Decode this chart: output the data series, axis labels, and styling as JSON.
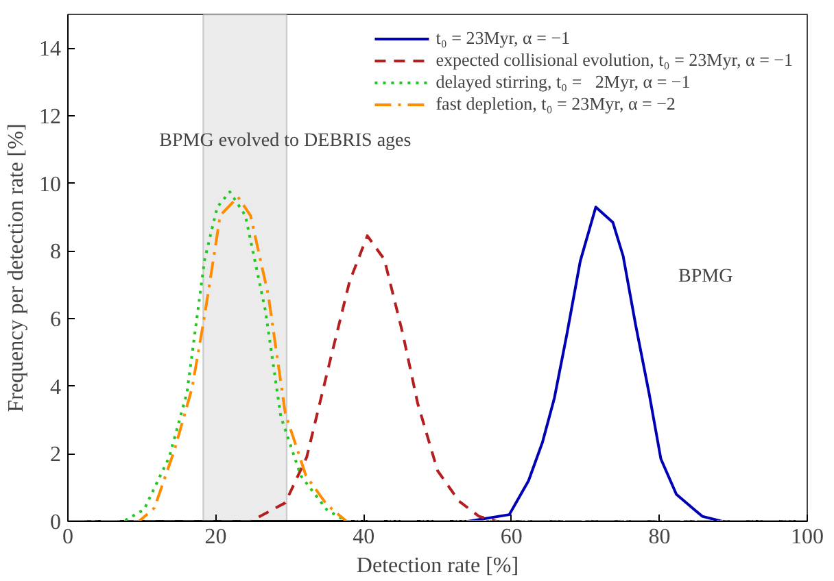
{
  "chart_data": {
    "type": "line",
    "xlabel": "Detection rate [%]",
    "ylabel": "Frequency per detection rate [%]",
    "xlim": [
      0,
      100
    ],
    "ylim": [
      0,
      15
    ],
    "xticks": [
      0,
      20,
      40,
      60,
      80,
      100
    ],
    "yticks": [
      0,
      2,
      4,
      6,
      8,
      10,
      12,
      14
    ],
    "grid": false,
    "legend": "top right",
    "series": [
      {
        "name": "t₀ = 23Myr, α = −1",
        "color": "#0000b4",
        "line_style": "solid",
        "x": [
          0,
          54.1,
          59.7,
          62.3,
          64.2,
          65.8,
          67.5,
          69.3,
          71.4,
          73.7,
          75.1,
          76.8,
          78.6,
          80.2,
          82.3,
          85.8,
          88.5,
          100
        ],
        "values": [
          0,
          0,
          0.2,
          1.2,
          2.35,
          3.65,
          5.55,
          7.7,
          9.3,
          8.85,
          7.85,
          5.8,
          3.8,
          1.85,
          0.8,
          0.15,
          0,
          0
        ]
      },
      {
        "name": "expected collisional evolution, t₀ = 23Myr, α = −1",
        "color": "#b41e1e",
        "line_style": "dashed",
        "x": [
          0,
          24.7,
          29.4,
          32.3,
          35.4,
          38.1,
          40.5,
          42.8,
          45.3,
          47.3,
          50,
          52.9,
          55.6,
          58,
          100
        ],
        "values": [
          0,
          0,
          0.55,
          1.9,
          4.7,
          7.1,
          8.45,
          7.75,
          5.55,
          3.5,
          1.5,
          0.6,
          0.15,
          0,
          0
        ]
      },
      {
        "name": "delayed stirring, t₀ =   2Myr, α = −1",
        "color": "#1ec81e",
        "line_style": "dotted",
        "x": [
          0,
          7.5,
          10.3,
          13.7,
          16.1,
          18.5,
          20.2,
          21.9,
          24,
          26.7,
          28.8,
          31.5,
          35,
          37.7,
          100
        ],
        "values": [
          0,
          0,
          0.35,
          1.9,
          3.8,
          7.75,
          9.3,
          9.75,
          9.05,
          6.25,
          3.1,
          1.35,
          0.35,
          0,
          0
        ]
      },
      {
        "name": "fast depletion, t₀ = 23Myr, α = −2",
        "color": "#ff8c00",
        "line_style": "dashdot",
        "x": [
          0,
          9.6,
          11.7,
          14.4,
          16.8,
          18.5,
          20.6,
          23,
          24.7,
          27.1,
          29.4,
          32.2,
          35,
          37.7,
          100
        ],
        "values": [
          0,
          0,
          0.4,
          2.1,
          3.95,
          6.1,
          9.05,
          9.6,
          9.05,
          6.7,
          3.2,
          1.35,
          0.5,
          0,
          0
        ]
      }
    ],
    "bands": [
      {
        "axis": "x",
        "from": 18.3,
        "to": 29.6,
        "label": "BPMG evolved to DEBRIS ages",
        "color": "#ebebeb"
      }
    ],
    "annotations": [
      "BPMG"
    ]
  }
}
